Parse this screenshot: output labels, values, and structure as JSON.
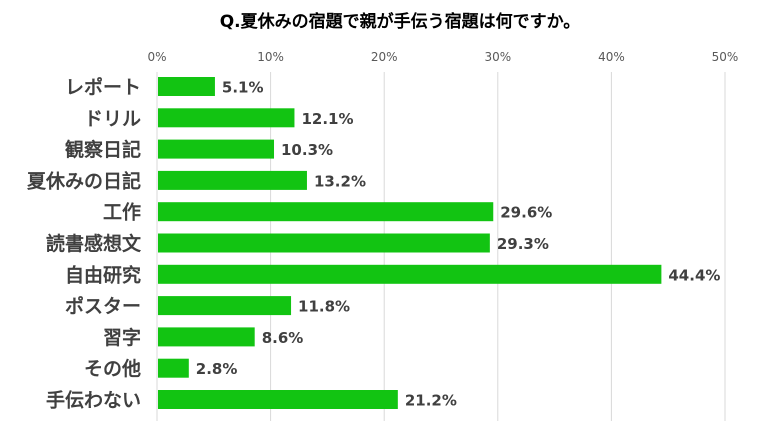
{
  "chart_data": {
    "type": "bar",
    "orientation": "horizontal",
    "title": "Q.夏休みの宿題で親が手伝う宿題は何ですか。",
    "categories": [
      "レポート",
      "ドリル",
      "観察日記",
      "夏休みの日記",
      "工作",
      "読書感想文",
      "自由研究",
      "ポスター",
      "習字",
      "その他",
      "手伝わない"
    ],
    "values": [
      5.1,
      12.1,
      10.3,
      13.2,
      29.6,
      29.3,
      44.4,
      11.8,
      8.6,
      2.8,
      21.2
    ],
    "value_labels": [
      "5.1%",
      "12.1%",
      "10.3%",
      "13.2%",
      "29.6%",
      "29.3%",
      "44.4%",
      "11.8%",
      "8.6%",
      "2.8%",
      "21.2%"
    ],
    "x_ticks": [
      0,
      10,
      20,
      30,
      40,
      50
    ],
    "x_tick_labels": [
      "0%",
      "10%",
      "20%",
      "30%",
      "40%",
      "50%"
    ],
    "xlim": [
      0,
      50
    ],
    "x_axis_position": "top",
    "grid": true,
    "legend": "none",
    "bar_color": "#12c412",
    "grid_color": "#d9d9d9",
    "label_color": "#404040"
  }
}
